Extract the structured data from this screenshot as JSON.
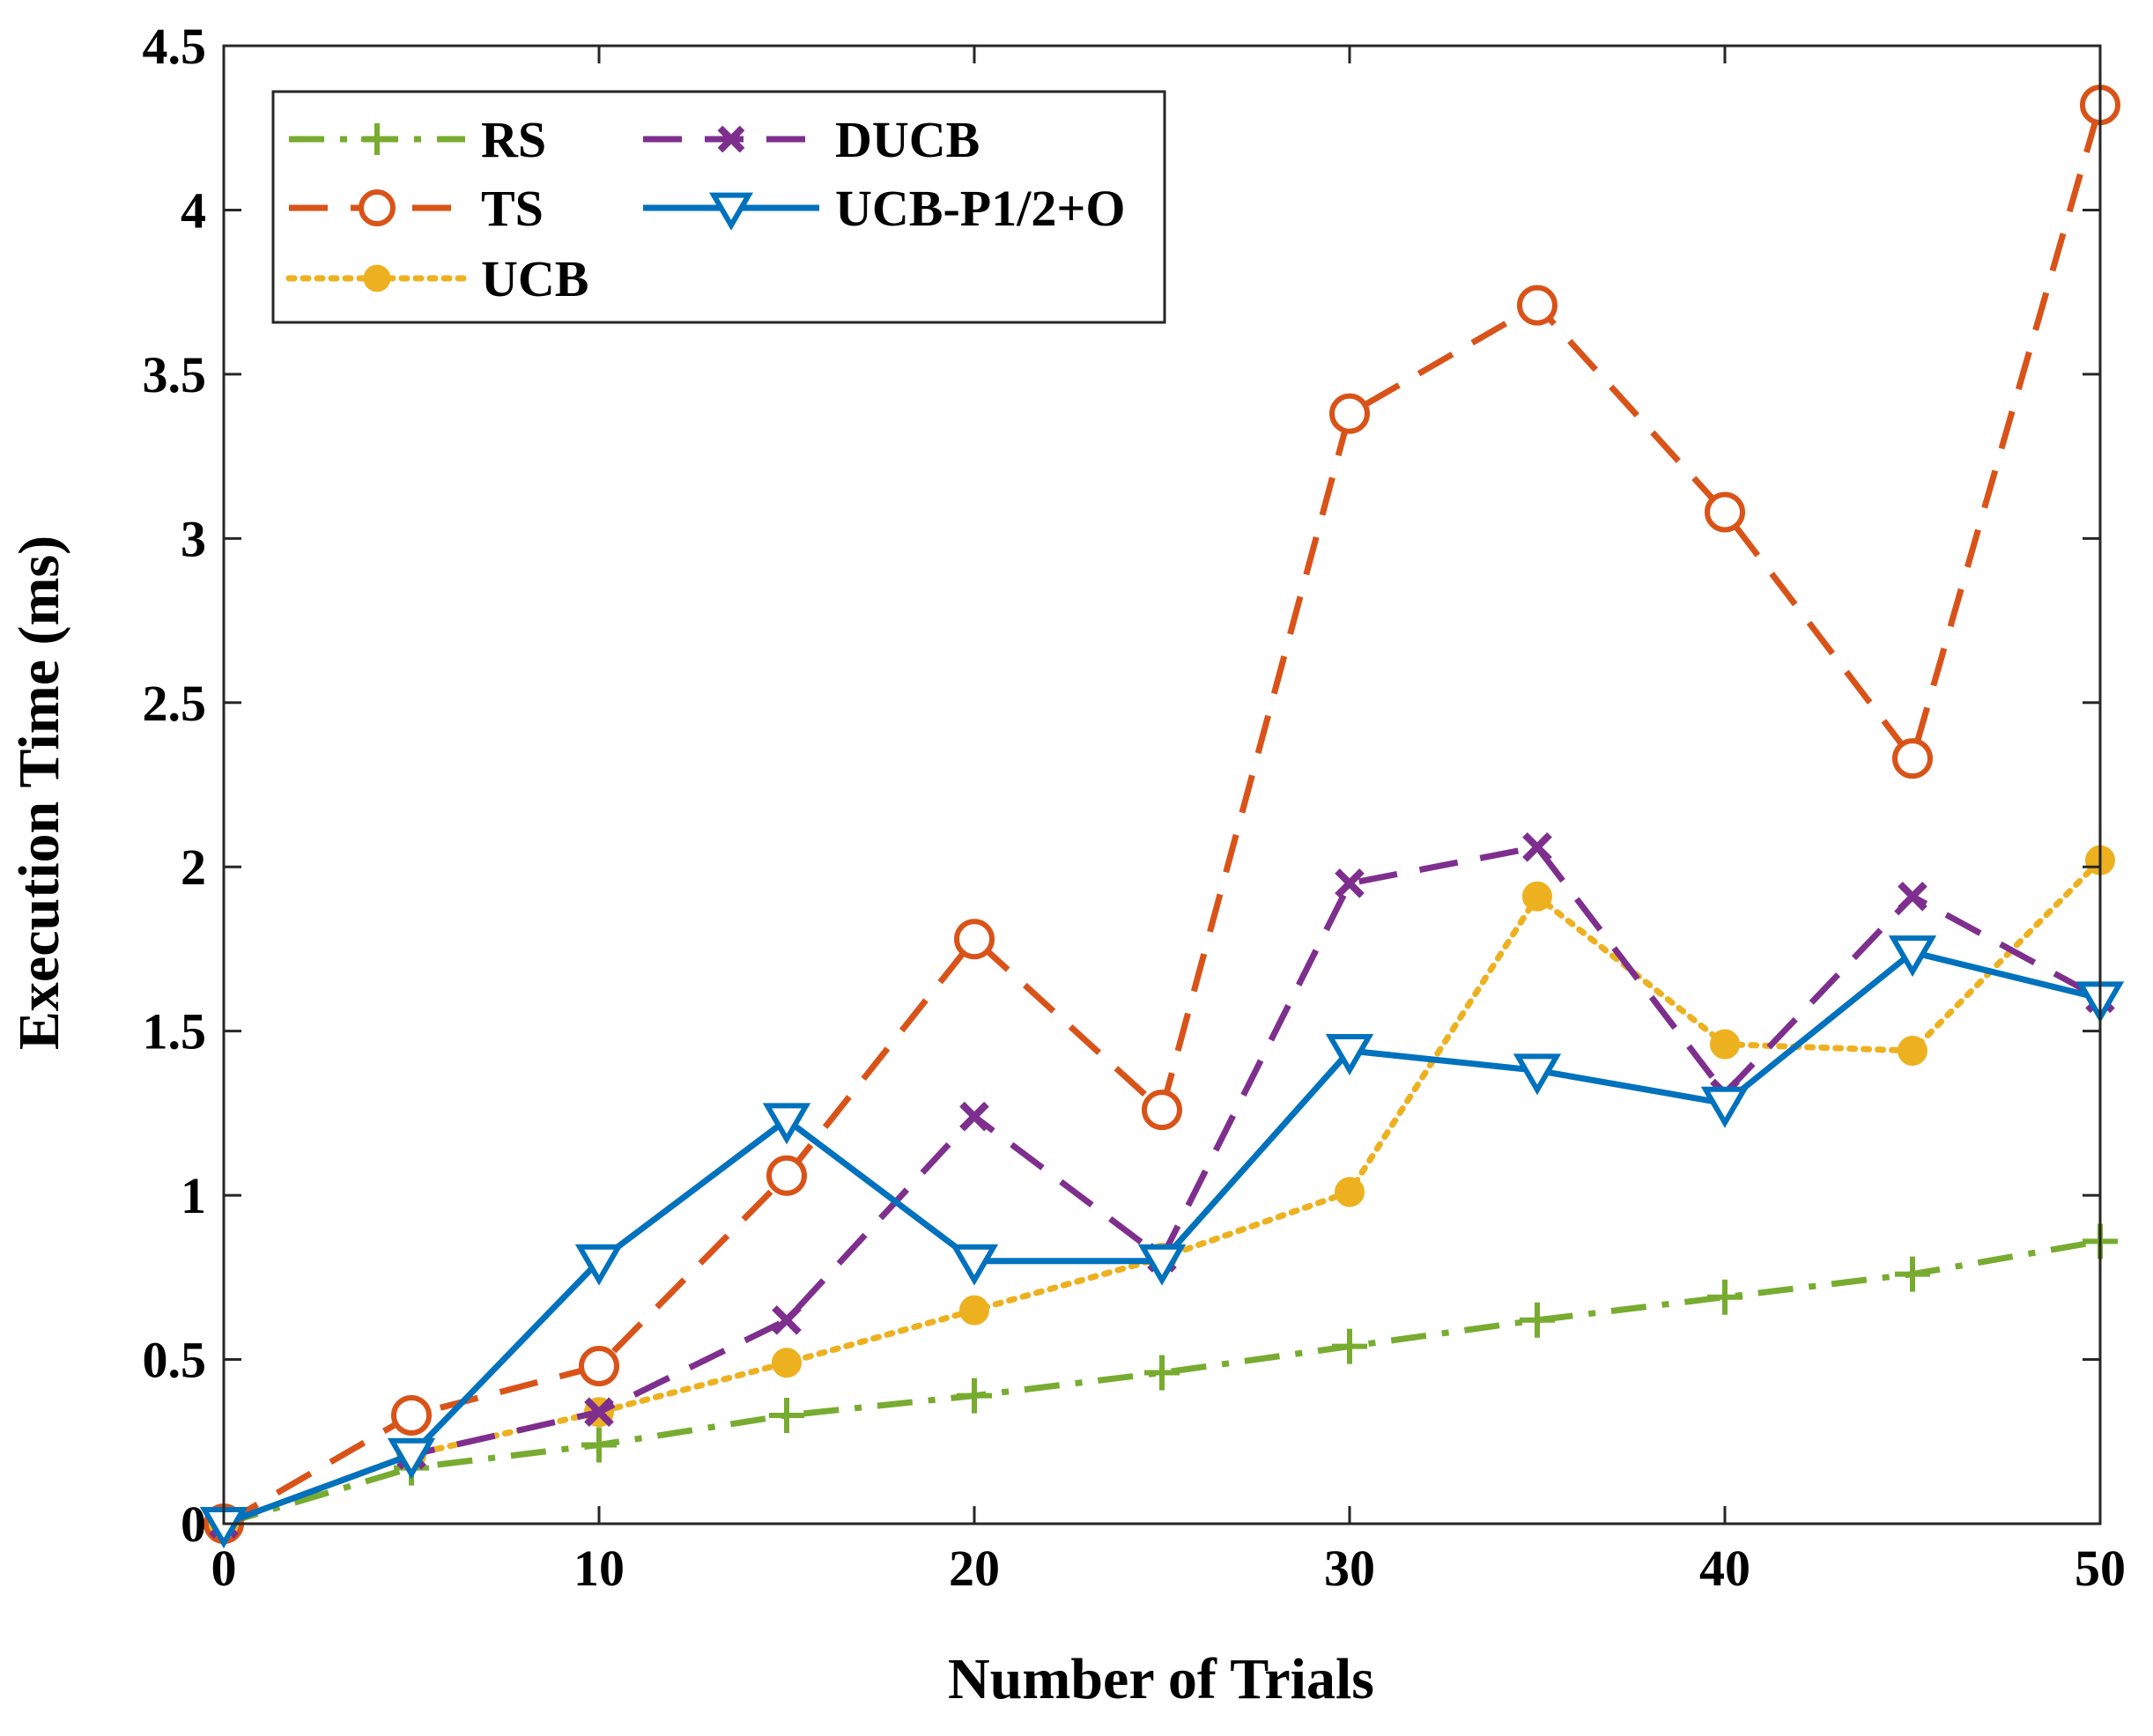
{
  "chart_data": {
    "type": "line",
    "title": "",
    "xlabel": "Number of Trials",
    "ylabel": "Execution Time (ms)",
    "xlim": [
      0,
      50
    ],
    "ylim": [
      0,
      4.5
    ],
    "grid": false,
    "legend_position": "top-left",
    "x": [
      0,
      5,
      10,
      15,
      20,
      25,
      30,
      35,
      40,
      45,
      50
    ],
    "x_ticks": [
      "0",
      "10",
      "20",
      "30",
      "40",
      "50"
    ],
    "x_tick_values": [
      0,
      10,
      20,
      30,
      40,
      50
    ],
    "y_ticks": [
      "0",
      "0.5",
      "1",
      "1.5",
      "2",
      "2.5",
      "3",
      "3.5",
      "4",
      "4.5"
    ],
    "y_tick_values": [
      0,
      0.5,
      1,
      1.5,
      2,
      2.5,
      3,
      3.5,
      4,
      4.5
    ],
    "series": [
      {
        "name": "RS",
        "key": "rs",
        "color": "#77AC30",
        "line_style": "dashdot",
        "marker": "plus",
        "values": [
          0,
          0.17,
          0.24,
          0.33,
          0.39,
          0.46,
          0.54,
          0.62,
          0.69,
          0.76,
          0.86
        ]
      },
      {
        "name": "TS",
        "key": "ts",
        "color": "#D95319",
        "line_style": "dashed",
        "marker": "circle",
        "values": [
          0,
          0.33,
          0.48,
          1.06,
          1.78,
          1.26,
          3.38,
          3.71,
          3.08,
          2.33,
          4.32
        ]
      },
      {
        "name": "UCB",
        "key": "ucb",
        "color": "#EDB120",
        "line_style": "dotted",
        "marker": "filled-circle",
        "values": [
          0,
          0.21,
          0.34,
          0.49,
          0.65,
          0.81,
          1.01,
          1.91,
          1.46,
          1.44,
          2.02
        ]
      },
      {
        "name": "DUCB",
        "key": "ducb",
        "color": "#7E2F8E",
        "line_style": "dashed",
        "marker": "x",
        "values": [
          0,
          0.21,
          0.34,
          0.62,
          1.24,
          0.81,
          1.95,
          2.06,
          1.31,
          1.91,
          1.6
        ]
      },
      {
        "name": "UCB-P1/2+O",
        "key": "ucbp",
        "color": "#0072BD",
        "line_style": "solid",
        "marker": "triangle-down",
        "values": [
          0,
          0.21,
          0.8,
          1.23,
          0.8,
          0.8,
          1.44,
          1.38,
          1.28,
          1.74,
          1.6
        ]
      }
    ]
  }
}
